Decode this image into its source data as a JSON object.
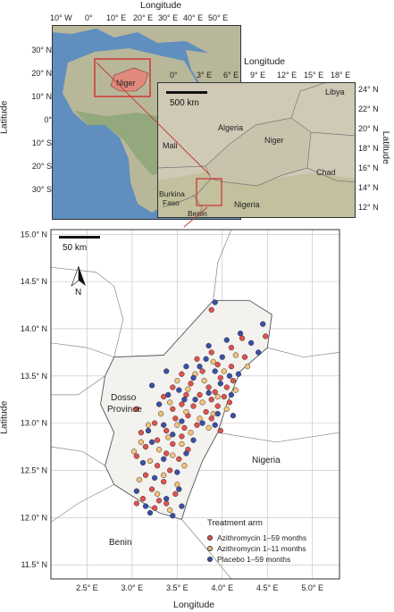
{
  "inset_world": {
    "x_axis_title": "Longitude",
    "y_axis_title": "Latitude",
    "lon_ticks": [
      "10° W",
      "0°",
      "10° E",
      "20° E",
      "30° E",
      "40° E",
      "50° E"
    ],
    "lat_ticks": [
      "30° N",
      "20° N",
      "10° N",
      "0°",
      "10° S",
      "20° S",
      "30° S"
    ],
    "highlight_label": "Niger",
    "colors": {
      "ocean": "#5f8ebf",
      "land": "#b9b79a",
      "niger_fill": "#e08a7d",
      "box": "#d12d2d"
    }
  },
  "inset_region": {
    "x_axis_title": "Longitude",
    "y_axis_title": "Latitude",
    "lon_ticks": [
      "0°",
      "3° E",
      "6° E",
      "9° E",
      "12° E",
      "15° E",
      "18° E"
    ],
    "lat_ticks": [
      "24° N",
      "22° N",
      "20° N",
      "18° N",
      "16° N",
      "14° N",
      "12° N"
    ],
    "scale_label": "500 km",
    "place_labels": [
      "Libya",
      "Algeria",
      "Mali",
      "Niger",
      "Chad",
      "Burkina Faso",
      "Nigeria",
      "Benin"
    ]
  },
  "main_map": {
    "x_axis_title": "Longitude",
    "y_axis_title": "Latitude",
    "scale_label": "50 km",
    "north_label": "N",
    "region_labels": [
      "Dosso Province",
      "Nigeria",
      "Benin"
    ],
    "legend_title": "Treatment arm",
    "colors": {
      "azithro_1_59": "#e0524e",
      "azithro_1_11": "#f3c37a",
      "placebo": "#3a4fa8",
      "dosso_fill": "#f4f2ef"
    }
  },
  "chart_data": {
    "type": "scatter",
    "x_label": "Longitude",
    "y_label": "Latitude",
    "x_ticks": [
      "2.5° E",
      "3.0° E",
      "3.5° E",
      "4.0° E",
      "4.5° E",
      "5.0° E"
    ],
    "y_ticks": [
      "15.0° N",
      "14.5° N",
      "14.0° N",
      "13.5° N",
      "13.0° N",
      "12.5° N",
      "12.0° N",
      "11.5° N"
    ],
    "xlim": [
      2.1,
      5.3
    ],
    "ylim": [
      11.35,
      15.05
    ],
    "series": [
      {
        "name": "Azithromycin 1–59 months",
        "color": "#e0524e",
        "points": [
          [
            3.88,
            14.2
          ],
          [
            4.22,
            13.9
          ],
          [
            4.48,
            13.92
          ],
          [
            4.1,
            13.8
          ],
          [
            3.88,
            13.75
          ],
          [
            4.25,
            13.7
          ],
          [
            3.72,
            13.68
          ],
          [
            3.95,
            13.62
          ],
          [
            4.1,
            13.6
          ],
          [
            3.78,
            13.55
          ],
          [
            3.55,
            13.52
          ],
          [
            3.98,
            13.48
          ],
          [
            4.12,
            13.45
          ],
          [
            3.65,
            13.42
          ],
          [
            3.85,
            13.38
          ],
          [
            4.05,
            13.38
          ],
          [
            3.45,
            13.38
          ],
          [
            3.92,
            13.33
          ],
          [
            3.75,
            13.3
          ],
          [
            3.6,
            13.3
          ],
          [
            4.02,
            13.28
          ],
          [
            3.35,
            13.28
          ],
          [
            3.88,
            13.25
          ],
          [
            4.08,
            13.22
          ],
          [
            3.55,
            13.2
          ],
          [
            3.68,
            13.18
          ],
          [
            3.95,
            13.18
          ],
          [
            3.45,
            13.15
          ],
          [
            3.82,
            13.12
          ],
          [
            3.05,
            13.15
          ],
          [
            3.62,
            13.08
          ],
          [
            3.88,
            13.05
          ],
          [
            3.48,
            13.05
          ],
          [
            3.25,
            13.0
          ],
          [
            3.72,
            12.98
          ],
          [
            3.58,
            12.95
          ],
          [
            3.38,
            12.92
          ],
          [
            3.98,
            12.92
          ],
          [
            3.1,
            12.9
          ],
          [
            3.55,
            12.86
          ],
          [
            3.28,
            12.82
          ],
          [
            3.45,
            12.78
          ],
          [
            3.15,
            12.75
          ],
          [
            3.62,
            12.72
          ],
          [
            3.38,
            12.68
          ],
          [
            3.05,
            12.65
          ],
          [
            3.52,
            12.62
          ],
          [
            3.28,
            12.55
          ],
          [
            3.42,
            12.5
          ],
          [
            3.15,
            12.45
          ],
          [
            3.35,
            12.38
          ],
          [
            3.22,
            12.3
          ],
          [
            3.48,
            12.25
          ],
          [
            3.12,
            12.2
          ],
          [
            3.38,
            12.15
          ],
          [
            3.25,
            12.1
          ],
          [
            3.3,
            12.18
          ],
          [
            3.05,
            12.15
          ]
        ]
      },
      {
        "name": "Azithromycin 1–11 months",
        "color": "#f3c37a",
        "points": [
          [
            4.15,
            13.72
          ],
          [
            3.9,
            13.65
          ],
          [
            4.28,
            13.6
          ],
          [
            3.7,
            13.52
          ],
          [
            4.02,
            13.55
          ],
          [
            3.8,
            13.45
          ],
          [
            3.5,
            13.45
          ],
          [
            4.15,
            13.35
          ],
          [
            3.62,
            13.36
          ],
          [
            3.95,
            13.28
          ],
          [
            3.42,
            13.22
          ],
          [
            3.78,
            13.22
          ],
          [
            4.05,
            13.15
          ],
          [
            3.6,
            13.12
          ],
          [
            3.32,
            13.1
          ],
          [
            3.9,
            13.1
          ],
          [
            3.75,
            13.05
          ],
          [
            3.5,
            12.98
          ],
          [
            3.18,
            12.98
          ],
          [
            3.85,
            12.95
          ],
          [
            3.65,
            12.9
          ],
          [
            3.4,
            12.85
          ],
          [
            3.1,
            12.8
          ],
          [
            3.55,
            12.78
          ],
          [
            3.3,
            12.72
          ],
          [
            3.02,
            12.7
          ],
          [
            3.45,
            12.66
          ],
          [
            3.2,
            12.6
          ],
          [
            3.58,
            12.55
          ],
          [
            3.35,
            12.45
          ],
          [
            3.08,
            12.4
          ],
          [
            3.5,
            12.35
          ],
          [
            3.28,
            12.25
          ],
          [
            3.42,
            12.08
          ]
        ]
      },
      {
        "name": "Placebo 1–59 months",
        "color": "#3a4fa8",
        "points": [
          [
            3.92,
            14.28
          ],
          [
            4.45,
            14.05
          ],
          [
            4.2,
            13.95
          ],
          [
            4.32,
            13.85
          ],
          [
            4.05,
            13.88
          ],
          [
            3.85,
            13.82
          ],
          [
            4.18,
            13.52
          ],
          [
            4.4,
            13.75
          ],
          [
            3.82,
            13.68
          ],
          [
            4.0,
            13.7
          ],
          [
            3.6,
            13.6
          ],
          [
            3.75,
            13.6
          ],
          [
            3.92,
            13.55
          ],
          [
            3.38,
            13.55
          ],
          [
            4.08,
            13.5
          ],
          [
            3.68,
            13.48
          ],
          [
            3.52,
            13.35
          ],
          [
            3.22,
            13.4
          ],
          [
            3.85,
            13.32
          ],
          [
            3.98,
            13.42
          ],
          [
            4.1,
            13.3
          ],
          [
            3.7,
            13.25
          ],
          [
            3.4,
            13.3
          ],
          [
            3.58,
            13.25
          ],
          [
            3.3,
            13.2
          ],
          [
            3.95,
            13.1
          ],
          [
            4.12,
            13.08
          ],
          [
            3.78,
            13.0
          ],
          [
            3.55,
            13.02
          ],
          [
            3.35,
            12.98
          ],
          [
            3.92,
            12.98
          ],
          [
            3.18,
            12.92
          ],
          [
            3.45,
            12.88
          ],
          [
            3.68,
            12.82
          ],
          [
            3.22,
            12.8
          ],
          [
            3.6,
            12.68
          ],
          [
            3.35,
            12.62
          ],
          [
            3.12,
            12.58
          ],
          [
            3.5,
            12.48
          ],
          [
            3.25,
            12.42
          ],
          [
            3.52,
            12.3
          ],
          [
            3.05,
            12.28
          ],
          [
            3.38,
            12.2
          ],
          [
            3.55,
            12.12
          ],
          [
            3.2,
            12.05
          ],
          [
            3.45,
            12.02
          ],
          [
            3.15,
            12.12
          ]
        ]
      }
    ]
  }
}
